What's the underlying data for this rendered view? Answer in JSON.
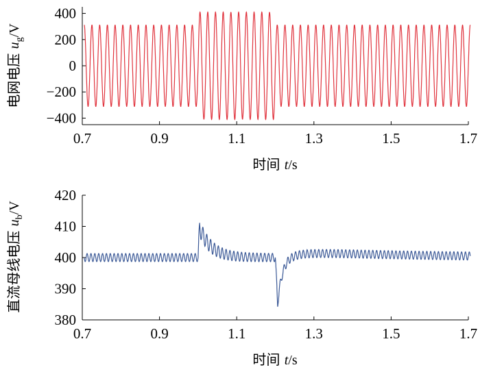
{
  "chart_data": [
    {
      "type": "line",
      "xlim": [
        0.7,
        1.7
      ],
      "ylim": [
        -450,
        450
      ],
      "x_ticks": [
        0.7,
        0.9,
        1.1,
        1.3,
        1.5,
        1.7
      ],
      "x_tick_labels": [
        "0.7",
        "0.9",
        "1.1",
        "1.3",
        "1.5",
        "1.7"
      ],
      "y_ticks": [
        400,
        200,
        0,
        -200,
        -400
      ],
      "y_tick_labels": [
        "400",
        "200",
        "0",
        "−200",
        "−400"
      ],
      "xlabel": {
        "prefix": "时间 ",
        "var": "t",
        "unit": "/s"
      },
      "ylabel": {
        "prefix": "电网电压 ",
        "var": "u",
        "sub": "g",
        "unit": "/V"
      },
      "grid": false,
      "series": [
        {
          "color": "#e0323c",
          "waveform": "sine",
          "frequency_hz": 50,
          "x_start": 0.705,
          "x_end": 1.705,
          "segments": [
            {
              "x_from": 0.705,
              "x_to": 1.0,
              "amplitude": 311
            },
            {
              "x_from": 1.0,
              "x_to": 1.2,
              "amplitude": 410
            },
            {
              "x_from": 1.2,
              "x_to": 1.705,
              "amplitude": 311
            }
          ]
        }
      ]
    },
    {
      "type": "line",
      "xlim": [
        0.7,
        1.7
      ],
      "ylim": [
        380,
        420
      ],
      "x_ticks": [
        0.7,
        0.9,
        1.1,
        1.3,
        1.5,
        1.7
      ],
      "x_tick_labels": [
        "0.7",
        "0.9",
        "1.1",
        "1.3",
        "1.5",
        "1.7"
      ],
      "y_ticks": [
        420,
        410,
        400,
        390,
        380
      ],
      "y_tick_labels": [
        "420",
        "410",
        "400",
        "390",
        "380"
      ],
      "xlabel": {
        "prefix": "时间 ",
        "var": "t",
        "unit": "/s"
      },
      "ylabel": {
        "prefix": "直流母线电压 ",
        "var": "u",
        "sub": "b",
        "unit": "/V"
      },
      "grid": false,
      "series": [
        {
          "color": "#3a5896",
          "baseline": 400,
          "ripple_amplitude": 1.3,
          "ripple_frequency_hz": 100,
          "events": [
            {
              "time": 1.0,
              "peak_value": 410,
              "kind": "overshoot"
            },
            {
              "time": 1.2,
              "peak_value": 385,
              "kind": "undershoot"
            }
          ],
          "x_start": 0.705,
          "x_end": 1.705
        }
      ]
    }
  ]
}
